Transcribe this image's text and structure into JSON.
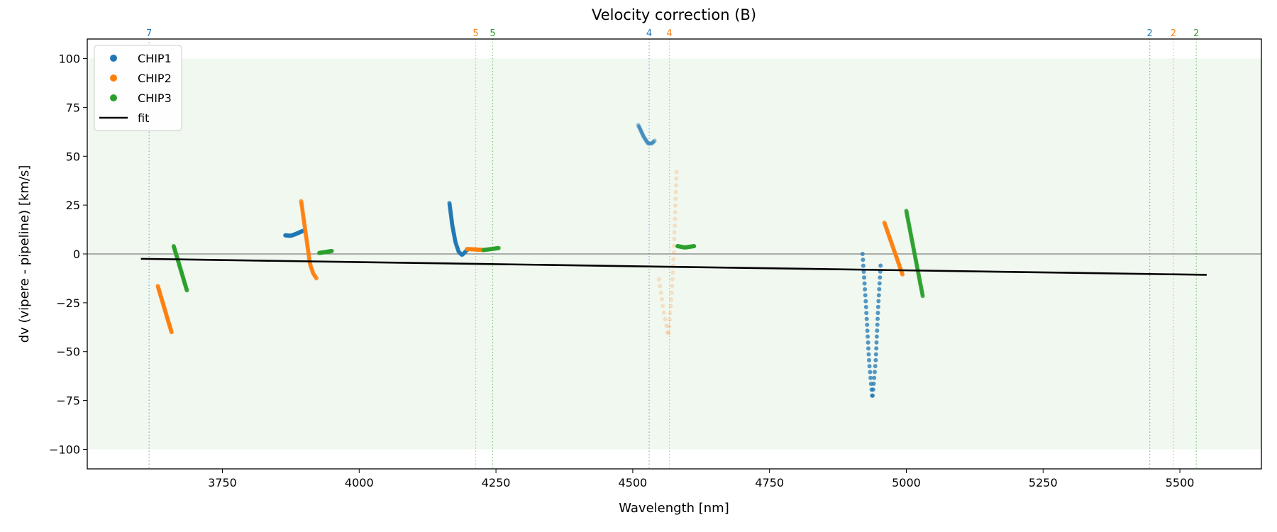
{
  "chart_data": {
    "type": "scatter",
    "title": "Velocity correction (B)",
    "xlabel": "Wavelength [nm]",
    "ylabel": "dv (vipere - pipeline) [km/s]",
    "xlim": [
      3503,
      5649
    ],
    "ylim": [
      -110,
      110
    ],
    "xticks": [
      3750,
      4000,
      4250,
      4500,
      4750,
      5000,
      5250,
      5500
    ],
    "yticks": [
      -100,
      -75,
      -50,
      -25,
      0,
      25,
      50,
      75,
      100
    ],
    "grid": false,
    "shaded_band": {
      "ymin": -100,
      "ymax": 100,
      "color": "#2ca02c"
    },
    "zero_line": 0,
    "legend": {
      "placement": "upper-left",
      "entries": [
        {
          "label": "CHIP1",
          "color": "#1f77b4",
          "kind": "marker"
        },
        {
          "label": "CHIP2",
          "color": "#ff7f0e",
          "kind": "marker"
        },
        {
          "label": "CHIP3",
          "color": "#2ca02c",
          "kind": "marker"
        },
        {
          "label": "fit",
          "color": "#000000",
          "kind": "line"
        }
      ]
    },
    "order_markers": [
      {
        "x": 3616,
        "label": "7",
        "color": "#1f77b4"
      },
      {
        "x": 4213,
        "label": "5",
        "color": "#ff7f0e"
      },
      {
        "x": 4244,
        "label": "5",
        "color": "#2ca02c"
      },
      {
        "x": 4530,
        "label": "4",
        "color": "#1f77b4"
      },
      {
        "x": 4567,
        "label": "4",
        "color": "#ff7f0e"
      },
      {
        "x": 5445,
        "label": "2",
        "color": "#1f77b4"
      },
      {
        "x": 5488,
        "label": "2",
        "color": "#ff7f0e"
      },
      {
        "x": 5530,
        "label": "2",
        "color": "#2ca02c"
      }
    ],
    "fit": {
      "x": [
        3601,
        5549
      ],
      "y": [
        -2.5,
        -10.7
      ]
    },
    "series": [
      {
        "name": "CHIP1",
        "color": "#1f77b4",
        "segments": [
          {
            "n": 30,
            "alpha": 0.9,
            "knots": [
              [
                3865,
                9.5
              ],
              [
                3875,
                9.3
              ],
              [
                3885,
                10.3
              ],
              [
                3897,
                11.8
              ]
            ]
          },
          {
            "n": 45,
            "alpha": 0.8,
            "knots": [
              [
                4165,
                26
              ],
              [
                4170,
                15
              ],
              [
                4176,
                6
              ],
              [
                4182,
                1
              ],
              [
                4188,
                -0.5
              ],
              [
                4192,
                0.5
              ],
              [
                4197,
                2
              ]
            ]
          },
          {
            "n": 30,
            "alpha": 0.35,
            "knots": [
              [
                4510,
                66
              ],
              [
                4520,
                60
              ],
              [
                4528,
                56.5
              ],
              [
                4535,
                56.5
              ],
              [
                4540,
                58
              ]
            ]
          },
          {
            "n": 48,
            "alpha": 0.75,
            "knots": [
              [
                4920,
                0
              ],
              [
                4926,
                -25
              ],
              [
                4932,
                -55
              ],
              [
                4938,
                -74
              ],
              [
                4944,
                -55
              ],
              [
                4949,
                -25
              ],
              [
                4953,
                -6
              ]
            ]
          }
        ]
      },
      {
        "name": "CHIP2",
        "color": "#ff7f0e",
        "segments": [
          {
            "n": 40,
            "alpha": 0.85,
            "knots": [
              [
                3632,
                -16.5
              ],
              [
                3657,
                -40
              ]
            ]
          },
          {
            "n": 55,
            "alpha": 0.75,
            "knots": [
              [
                3894,
                27
              ],
              [
                3900,
                15
              ],
              [
                3906,
                3
              ],
              [
                3910,
                -5
              ],
              [
                3916,
                -10
              ],
              [
                3922,
                -12.5
              ]
            ]
          },
          {
            "n": 30,
            "alpha": 0.8,
            "knots": [
              [
                4197,
                2.5
              ],
              [
                4212,
                2.3
              ],
              [
                4227,
                2
              ]
            ]
          },
          {
            "n": 34,
            "alpha": 0.2,
            "knots": [
              [
                4548,
                -13
              ],
              [
                4558,
                -32
              ],
              [
                4565,
                -42
              ],
              [
                4570,
                -25
              ],
              [
                4575,
                0
              ],
              [
                4580,
                42
              ]
            ]
          },
          {
            "n": 40,
            "alpha": 0.8,
            "knots": [
              [
                4960,
                16
              ],
              [
                4993,
                -10.5
              ]
            ]
          }
        ]
      },
      {
        "name": "CHIP3",
        "color": "#2ca02c",
        "segments": [
          {
            "n": 40,
            "alpha": 0.85,
            "knots": [
              [
                3661,
                4
              ],
              [
                3685,
                -18.6
              ]
            ]
          },
          {
            "n": 25,
            "alpha": 0.85,
            "knots": [
              [
                3927,
                0.5
              ],
              [
                3950,
                1.5
              ]
            ]
          },
          {
            "n": 28,
            "alpha": 0.7,
            "knots": [
              [
                4227,
                2
              ],
              [
                4255,
                3
              ]
            ]
          },
          {
            "n": 28,
            "alpha": 0.95,
            "knots": [
              [
                4582,
                4
              ],
              [
                4595,
                3.3
              ],
              [
                4612,
                4
              ]
            ]
          },
          {
            "n": 50,
            "alpha": 0.85,
            "knots": [
              [
                5000,
                22
              ],
              [
                5030,
                -21.5
              ]
            ]
          }
        ]
      }
    ]
  }
}
